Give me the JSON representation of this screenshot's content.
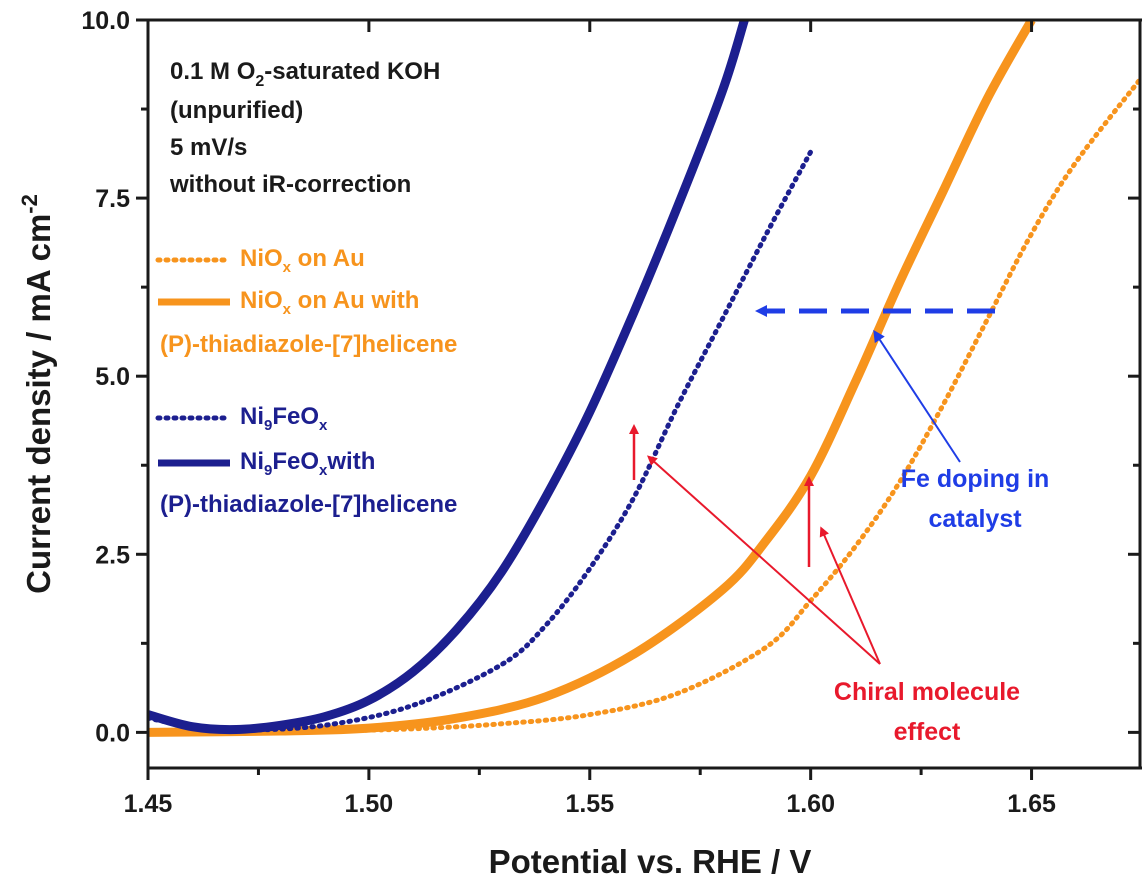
{
  "colors": {
    "orange": "#f7941d",
    "navy": "#1c1f8f",
    "blue_arrow": "#1f3de6",
    "red": "#e8192c",
    "axis": "#1a1a1a"
  },
  "conditions": {
    "line1_main": "0.1 M O",
    "line1_sub": "2",
    "line1_rest": "-saturated KOH",
    "line2": "(unpurified)",
    "line3": "5 mV/s",
    "line4": "without iR-correction"
  },
  "legend": {
    "nio_main": "NiO",
    "nio_sub": "x",
    "nio_rest": " on Au",
    "nio_hel_main": "NiO",
    "nio_hel_sub": "x",
    "nio_hel_rest": " on Au with",
    "nio_hel_line2": "(P)-thiadiazole-[7]helicene",
    "nife_a": "Ni",
    "nife_sub1": "9",
    "nife_b": "FeO",
    "nife_sub2": "x",
    "nifehel_a": "Ni",
    "nifehel_sub1": "9",
    "nifehel_b": "FeO",
    "nifehel_sub2": "x",
    "nifehel_rest": "with",
    "nifehel_line2": "(P)-thiadiazole-[7]helicene"
  },
  "annotations": {
    "fe_doping_line1": "Fe doping in",
    "fe_doping_line2": "catalyst",
    "chiral_line1": "Chiral molecule",
    "chiral_line2": "effect"
  },
  "axes": {
    "ylabel_main": "Current density / mA cm",
    "ylabel_sup": "-2",
    "xlabel": "Potential vs. RHE / V"
  },
  "chart_data": {
    "type": "line",
    "xlim": [
      1.45,
      1.675
    ],
    "ylim": [
      -0.5,
      10.0
    ],
    "x_ticks": [
      "1.45",
      "1.50",
      "1.55",
      "1.60",
      "1.65"
    ],
    "y_ticks": [
      "0.0",
      "2.5",
      "5.0",
      "7.5",
      "10.0"
    ],
    "grid": false,
    "legend_position": "upper-left",
    "series": [
      {
        "name": "NiOx on Au",
        "style": "dotted",
        "color": "#f7941d",
        "x": [
          1.45,
          1.47,
          1.49,
          1.51,
          1.53,
          1.55,
          1.57,
          1.59,
          1.6,
          1.61,
          1.62,
          1.63,
          1.64,
          1.65,
          1.66,
          1.675
        ],
        "y": [
          0.0,
          0.0,
          0.02,
          0.05,
          0.12,
          0.25,
          0.55,
          1.2,
          1.85,
          2.6,
          3.5,
          4.6,
          5.8,
          7.0,
          8.0,
          9.2
        ]
      },
      {
        "name": "NiOx on Au with (P)-thiadiazole-[7]helicene",
        "style": "solid",
        "color": "#f7941d",
        "x": [
          1.45,
          1.48,
          1.5,
          1.52,
          1.54,
          1.56,
          1.58,
          1.59,
          1.6,
          1.61,
          1.62,
          1.63,
          1.64,
          1.65
        ],
        "y": [
          0.0,
          0.02,
          0.06,
          0.2,
          0.5,
          1.1,
          2.0,
          2.7,
          3.6,
          4.9,
          6.3,
          7.6,
          8.9,
          10.0
        ]
      },
      {
        "name": "Ni9FeOx",
        "style": "dotted",
        "color": "#1c1f8f",
        "x": [
          1.45,
          1.46,
          1.47,
          1.49,
          1.51,
          1.53,
          1.54,
          1.55,
          1.56,
          1.57,
          1.58,
          1.59,
          1.6
        ],
        "y": [
          0.2,
          0.08,
          0.03,
          0.1,
          0.38,
          0.95,
          1.5,
          2.3,
          3.3,
          4.6,
          5.8,
          7.0,
          8.15
        ]
      },
      {
        "name": "Ni9FeOx with (P)-thiadiazole-[7]helicene",
        "style": "solid",
        "color": "#1c1f8f",
        "x": [
          1.45,
          1.46,
          1.47,
          1.48,
          1.49,
          1.5,
          1.51,
          1.52,
          1.53,
          1.54,
          1.55,
          1.56,
          1.57,
          1.58,
          1.585
        ],
        "y": [
          0.25,
          0.08,
          0.04,
          0.1,
          0.22,
          0.45,
          0.85,
          1.45,
          2.25,
          3.3,
          4.5,
          5.9,
          7.4,
          9.0,
          10.0
        ]
      }
    ]
  }
}
